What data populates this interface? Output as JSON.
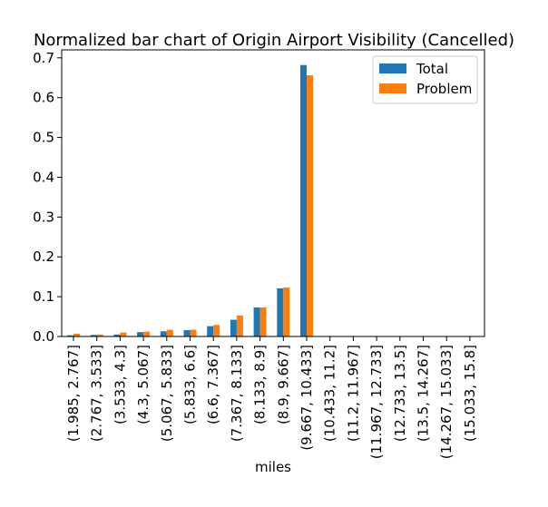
{
  "chart_data": {
    "type": "bar",
    "title": "Normalized bar chart of Origin Airport Visibility (Cancelled)",
    "xlabel": "miles",
    "ylabel": "",
    "ylim": [
      0,
      0.72
    ],
    "yticks": [
      0.0,
      0.1,
      0.2,
      0.3,
      0.4,
      0.5,
      0.6,
      0.7
    ],
    "ytick_labels": [
      "0.0",
      "0.1",
      "0.2",
      "0.3",
      "0.4",
      "0.5",
      "0.6",
      "0.7"
    ],
    "grid": false,
    "legend_position": "top-right",
    "categories": [
      "(1.985, 2.767]",
      "(2.767, 3.533]",
      "(3.533, 4.3]",
      "(4.3, 5.067]",
      "(5.067, 5.833]",
      "(5.833, 6.6]",
      "(6.6, 7.367]",
      "(7.367, 8.133]",
      "(8.133, 8.9]",
      "(8.9, 9.667]",
      "(9.667, 10.433]",
      "(10.433, 11.2]",
      "(11.2, 11.967]",
      "(11.967, 12.733]",
      "(12.733, 13.5]",
      "(13.5, 14.267]",
      "(14.267, 15.033]",
      "(15.033, 15.8]"
    ],
    "series": [
      {
        "name": "Total",
        "color": "#1f77b4",
        "values": [
          0.003,
          0.004,
          0.005,
          0.011,
          0.013,
          0.016,
          0.026,
          0.042,
          0.073,
          0.121,
          0.682,
          0,
          0,
          0,
          0,
          0,
          0,
          0
        ]
      },
      {
        "name": "Problem",
        "color": "#ff7f0e",
        "values": [
          0.007,
          0.005,
          0.01,
          0.012,
          0.017,
          0.017,
          0.029,
          0.053,
          0.073,
          0.123,
          0.656,
          0,
          0,
          0,
          0,
          0,
          0,
          0
        ]
      }
    ]
  }
}
